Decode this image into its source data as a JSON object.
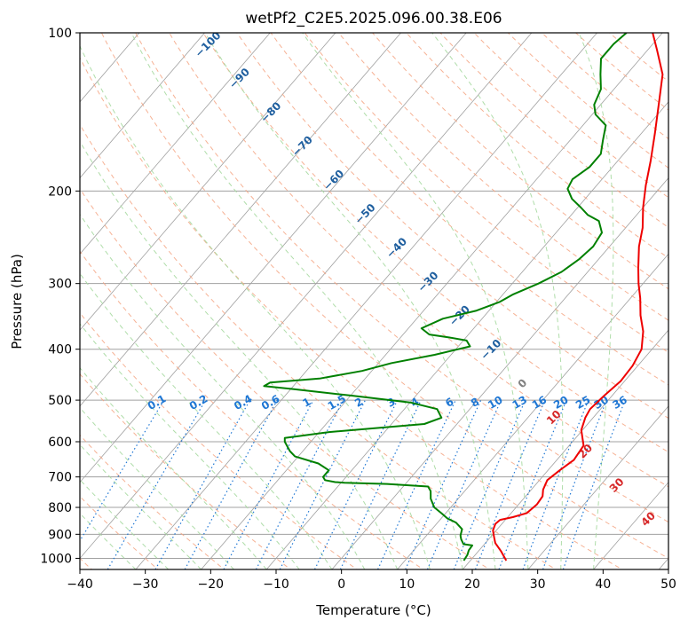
{
  "chart_data": {
    "type": "line",
    "title": "wetPf2_C2E5.2025.096.00.38.E06",
    "xlabel": "Temperature (°C)",
    "ylabel": "Pressure (hPa)",
    "xlim": [
      -40,
      50
    ],
    "ylim": [
      1050,
      100
    ],
    "y_scale": "log",
    "x_ticks": [
      "−40",
      "−30",
      "−20",
      "−10",
      "0",
      "10",
      "20",
      "30",
      "40",
      "50"
    ],
    "y_ticks": [
      "100",
      "200",
      "300",
      "400",
      "500",
      "600",
      "700",
      "800",
      "900",
      "1000"
    ],
    "grid": true,
    "series": [
      {
        "color": "#ee0000",
        "points": [
          [
            25.5,
            1010
          ],
          [
            23.5,
            970
          ],
          [
            21.5,
            935
          ],
          [
            20.5,
            910
          ],
          [
            19.5,
            885
          ],
          [
            19.0,
            860
          ],
          [
            19.2,
            845
          ],
          [
            20.8,
            835
          ],
          [
            22.4,
            820
          ],
          [
            22.8,
            790
          ],
          [
            22.6,
            762
          ],
          [
            21.8,
            740
          ],
          [
            21.2,
            710
          ],
          [
            21.8,
            680
          ],
          [
            22.6,
            650
          ],
          [
            22.2,
            610
          ],
          [
            19.8,
            570
          ],
          [
            18.8,
            540
          ],
          [
            18.4,
            520
          ],
          [
            18.8,
            490
          ],
          [
            19.4,
            460
          ],
          [
            19.2,
            430
          ],
          [
            18.4,
            400
          ],
          [
            16.3,
            370
          ],
          [
            13.8,
            345
          ],
          [
            11.5,
            320
          ],
          [
            9.3,
            300
          ],
          [
            7.2,
            280
          ],
          [
            4.5,
            255
          ],
          [
            2.6,
            235
          ],
          [
            0.0,
            215
          ],
          [
            -2.5,
            195
          ],
          [
            -5.0,
            175
          ],
          [
            -8.0,
            155
          ],
          [
            -11.5,
            135
          ],
          [
            -14.5,
            120
          ],
          [
            -18.5,
            108
          ],
          [
            -21.5,
            100
          ]
        ]
      },
      {
        "color": "#008000",
        "points": [
          [
            19.0,
            1010
          ],
          [
            18.8,
            985
          ],
          [
            18.4,
            965
          ],
          [
            18.3,
            945
          ],
          [
            16.8,
            940
          ],
          [
            15.8,
            920
          ],
          [
            15.2,
            905
          ],
          [
            14.6,
            880
          ],
          [
            12.8,
            855
          ],
          [
            11.0,
            840
          ],
          [
            9.3,
            820
          ],
          [
            7.5,
            800
          ],
          [
            5.8,
            770
          ],
          [
            4.8,
            745
          ],
          [
            3.8,
            730
          ],
          [
            -2.8,
            722
          ],
          [
            -9.5,
            718
          ],
          [
            -11.0,
            716
          ],
          [
            -12.8,
            710
          ],
          [
            -13.5,
            700
          ],
          [
            -13.5,
            680
          ],
          [
            -16.0,
            660
          ],
          [
            -20.5,
            640
          ],
          [
            -22.0,
            625
          ],
          [
            -24.0,
            600
          ],
          [
            -24.5,
            590
          ],
          [
            -18.5,
            575
          ],
          [
            -5.0,
            555
          ],
          [
            -3.2,
            540
          ],
          [
            -5.0,
            520
          ],
          [
            -10.0,
            505
          ],
          [
            -20.0,
            490
          ],
          [
            -30.0,
            476
          ],
          [
            -34.5,
            470
          ],
          [
            -34.0,
            463
          ],
          [
            -27.0,
            455
          ],
          [
            -21.5,
            440
          ],
          [
            -18.0,
            425
          ],
          [
            -12.5,
            410
          ],
          [
            -8.2,
            395
          ],
          [
            -9.5,
            385
          ],
          [
            -12.5,
            380
          ],
          [
            -16.0,
            375
          ],
          [
            -18.0,
            365
          ],
          [
            -16.0,
            350
          ],
          [
            -12.0,
            338
          ],
          [
            -9.5,
            325
          ],
          [
            -8.5,
            315
          ],
          [
            -6.0,
            300
          ],
          [
            -4.0,
            285
          ],
          [
            -3.0,
            270
          ],
          [
            -2.5,
            255
          ],
          [
            -3.0,
            240
          ],
          [
            -5.0,
            228
          ],
          [
            -7.5,
            222
          ],
          [
            -9.5,
            215
          ],
          [
            -12.0,
            207
          ],
          [
            -14.0,
            198
          ],
          [
            -14.5,
            190
          ],
          [
            -13.5,
            180
          ],
          [
            -13.5,
            170
          ],
          [
            -15.0,
            160
          ],
          [
            -16.5,
            150
          ],
          [
            -19.5,
            143
          ],
          [
            -21.0,
            137
          ],
          [
            -22.0,
            128
          ],
          [
            -24.0,
            120
          ],
          [
            -26.0,
            112
          ],
          [
            -26.0,
            105
          ],
          [
            -25.5,
            100
          ]
        ]
      }
    ],
    "dry_adiabat_labels": [
      "−100",
      "−90",
      "−80",
      "−70",
      "−60",
      "−50",
      "−40",
      "−30",
      "−20",
      "−10",
      "0",
      "10",
      "20",
      "30",
      "40"
    ],
    "mixing_ratio_labels": [
      "0.1",
      "0.2",
      "0.4",
      "0.6",
      "1",
      "1.5",
      "2",
      "3",
      "4",
      "6",
      "8",
      "10",
      "13",
      "16",
      "20",
      "25",
      "30",
      "36"
    ],
    "colors": {
      "temperature": "#ee0000",
      "dewpoint": "#008000",
      "dry_adiabat": "#f4a582",
      "moist_adiabat": "#a6d9a0",
      "mixing_ratio": "#1f77d4",
      "isotherm": "#a0a0a0",
      "cold_adiabat_label": "#1f5f9f",
      "warm_adiabat_label": "#d62728",
      "zero_label": "#808080"
    }
  }
}
